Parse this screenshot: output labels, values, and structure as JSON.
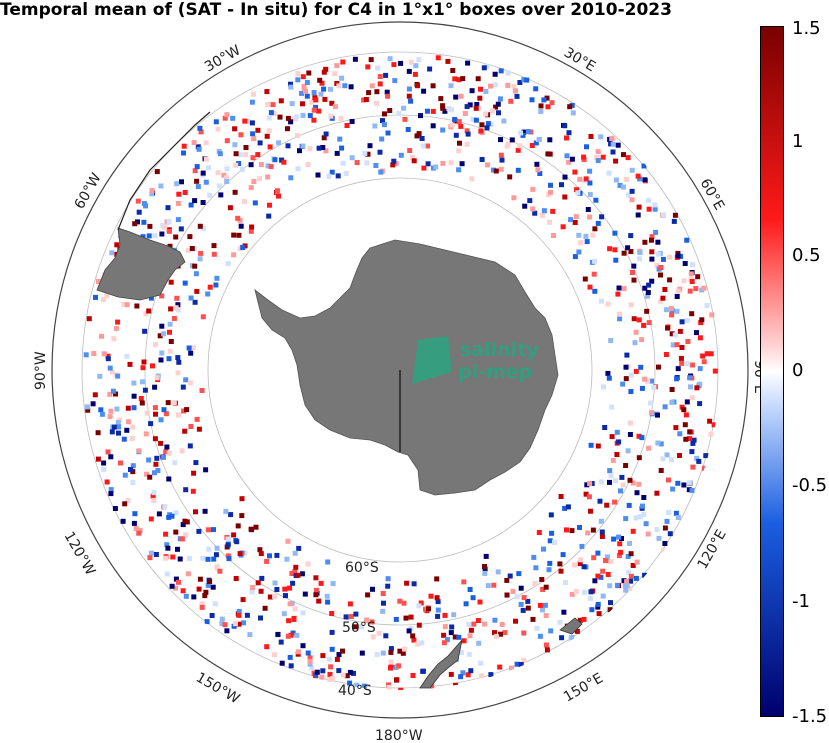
{
  "title": "Temporal mean of (SAT - In situ) for C4 in 1°x1° boxes over 2010-2023",
  "logo": {
    "line1": "salinity",
    "line2": "pi-mep"
  },
  "longitude_labels": {
    "w30": "30°W",
    "e30": "30°E",
    "w60": "60°W",
    "e60": "60°E",
    "w90": "90°W",
    "e90": "90°E",
    "w120": "120°W",
    "e120": "120°E",
    "w150": "150°W",
    "e150": "150°E",
    "d180": "180°W"
  },
  "latitude_labels": {
    "s60": "60°S",
    "s50": "50°S",
    "s40": "40°S"
  },
  "colorbar": {
    "min": -1.5,
    "max": 1.5,
    "ticks": [
      "1.5",
      "1",
      "0.5",
      "0",
      "-0.5",
      "-1",
      "-1.5"
    ],
    "colors": {
      "neg_extreme": "#00006e",
      "neg": "#1a5fe0",
      "neutral": "#ffffff",
      "pos": "#ff1a1a",
      "pos_extreme": "#7a0000"
    }
  },
  "map_colors": {
    "land": "#777777",
    "grid": "#bdbdbd",
    "frame": "#444444",
    "logo": "#2aa37f"
  }
}
